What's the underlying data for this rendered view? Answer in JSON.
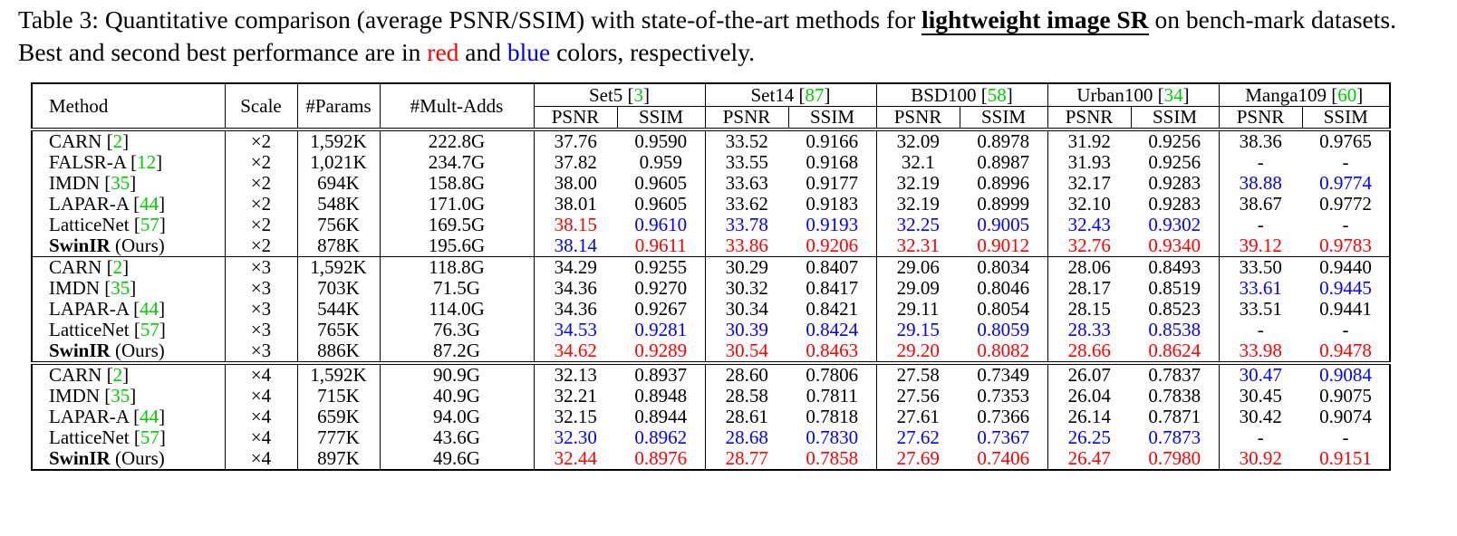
{
  "caption": {
    "prefix": "Table 3: Quantitative comparison (average PSNR/SSIM) with state-of-the-art methods for ",
    "bold": "lightweight image SR",
    "middle": " on bench-mark datasets. Best and second best performance are in ",
    "red_word": "red",
    "and_word": " and ",
    "blue_word": "blue",
    "suffix": " colors, respectively."
  },
  "colors": {
    "best": "#ff0000",
    "second": "#0000ff",
    "citation": "#00cc00"
  },
  "header": {
    "method": "Method",
    "scale": "Scale",
    "params": "#Params",
    "mult_adds": "#Mult-Adds",
    "datasets": [
      {
        "name": "Set5",
        "cite": "3"
      },
      {
        "name": "Set14",
        "cite": "87"
      },
      {
        "name": "BSD100",
        "cite": "58"
      },
      {
        "name": "Urban100",
        "cite": "34"
      },
      {
        "name": "Manga109",
        "cite": "60"
      }
    ],
    "psnr": "PSNR",
    "ssim": "SSIM"
  },
  "groups": [
    {
      "rows": [
        {
          "name": "CARN",
          "cite": "2",
          "suffix": "",
          "bold": false,
          "scale": "×2",
          "params": "1,592K",
          "mult": "222.8G",
          "cells": [
            [
              "37.76",
              ""
            ],
            [
              "0.9590",
              ""
            ],
            [
              "33.52",
              ""
            ],
            [
              "0.9166",
              ""
            ],
            [
              "32.09",
              ""
            ],
            [
              "0.8978",
              ""
            ],
            [
              "31.92",
              ""
            ],
            [
              "0.9256",
              ""
            ],
            [
              "38.36",
              ""
            ],
            [
              "0.9765",
              ""
            ]
          ]
        },
        {
          "name": "FALSR-A",
          "cite": "12",
          "suffix": "",
          "bold": false,
          "scale": "×2",
          "params": "1,021K",
          "mult": "234.7G",
          "cells": [
            [
              "37.82",
              ""
            ],
            [
              "0.959",
              ""
            ],
            [
              "33.55",
              ""
            ],
            [
              "0.9168",
              ""
            ],
            [
              "32.1",
              ""
            ],
            [
              "0.8987",
              ""
            ],
            [
              "31.93",
              ""
            ],
            [
              "0.9256",
              ""
            ],
            [
              "-",
              ""
            ],
            [
              "-",
              ""
            ]
          ]
        },
        {
          "name": "IMDN",
          "cite": "35",
          "suffix": "",
          "bold": false,
          "scale": "×2",
          "params": "694K",
          "mult": "158.8G",
          "cells": [
            [
              "38.00",
              ""
            ],
            [
              "0.9605",
              ""
            ],
            [
              "33.63",
              ""
            ],
            [
              "0.9177",
              ""
            ],
            [
              "32.19",
              ""
            ],
            [
              "0.8996",
              ""
            ],
            [
              "32.17",
              ""
            ],
            [
              "0.9283",
              ""
            ],
            [
              "38.88",
              "b"
            ],
            [
              "0.9774",
              "b"
            ]
          ]
        },
        {
          "name": "LAPAR-A",
          "cite": "44",
          "suffix": "",
          "bold": false,
          "scale": "×2",
          "params": "548K",
          "mult": "171.0G",
          "cells": [
            [
              "38.01",
              ""
            ],
            [
              "0.9605",
              ""
            ],
            [
              "33.62",
              ""
            ],
            [
              "0.9183",
              ""
            ],
            [
              "32.19",
              ""
            ],
            [
              "0.8999",
              ""
            ],
            [
              "32.10",
              ""
            ],
            [
              "0.9283",
              ""
            ],
            [
              "38.67",
              ""
            ],
            [
              "0.9772",
              ""
            ]
          ]
        },
        {
          "name": "LatticeNet",
          "cite": "57",
          "suffix": "",
          "bold": false,
          "scale": "×2",
          "params": "756K",
          "mult": "169.5G",
          "cells": [
            [
              "38.15",
              "r"
            ],
            [
              "0.9610",
              "b"
            ],
            [
              "33.78",
              "b"
            ],
            [
              "0.9193",
              "b"
            ],
            [
              "32.25",
              "b"
            ],
            [
              "0.9005",
              "b"
            ],
            [
              "32.43",
              "b"
            ],
            [
              "0.9302",
              "b"
            ],
            [
              "-",
              ""
            ],
            [
              "-",
              ""
            ]
          ]
        },
        {
          "name": "SwinIR",
          "cite": "",
          "suffix": " (Ours)",
          "bold": true,
          "scale": "×2",
          "params": "878K",
          "mult": "195.6G",
          "cells": [
            [
              "38.14",
              "b"
            ],
            [
              "0.9611",
              "r"
            ],
            [
              "33.86",
              "r"
            ],
            [
              "0.9206",
              "r"
            ],
            [
              "32.31",
              "r"
            ],
            [
              "0.9012",
              "r"
            ],
            [
              "32.76",
              "r"
            ],
            [
              "0.9340",
              "r"
            ],
            [
              "39.12",
              "r"
            ],
            [
              "0.9783",
              "r"
            ]
          ]
        }
      ]
    },
    {
      "rows": [
        {
          "name": "CARN",
          "cite": "2",
          "suffix": "",
          "bold": false,
          "scale": "×3",
          "params": "1,592K",
          "mult": "118.8G",
          "cells": [
            [
              "34.29",
              ""
            ],
            [
              "0.9255",
              ""
            ],
            [
              "30.29",
              ""
            ],
            [
              "0.8407",
              ""
            ],
            [
              "29.06",
              ""
            ],
            [
              "0.8034",
              ""
            ],
            [
              "28.06",
              ""
            ],
            [
              "0.8493",
              ""
            ],
            [
              "33.50",
              ""
            ],
            [
              "0.9440",
              ""
            ]
          ]
        },
        {
          "name": "IMDN",
          "cite": "35",
          "suffix": "",
          "bold": false,
          "scale": "×3",
          "params": "703K",
          "mult": "71.5G",
          "cells": [
            [
              "34.36",
              ""
            ],
            [
              "0.9270",
              ""
            ],
            [
              "30.32",
              ""
            ],
            [
              "0.8417",
              ""
            ],
            [
              "29.09",
              ""
            ],
            [
              "0.8046",
              ""
            ],
            [
              "28.17",
              ""
            ],
            [
              "0.8519",
              ""
            ],
            [
              "33.61",
              "b"
            ],
            [
              "0.9445",
              "b"
            ]
          ]
        },
        {
          "name": "LAPAR-A",
          "cite": "44",
          "suffix": "",
          "bold": false,
          "scale": "×3",
          "params": "544K",
          "mult": "114.0G",
          "cells": [
            [
              "34.36",
              ""
            ],
            [
              "0.9267",
              ""
            ],
            [
              "30.34",
              ""
            ],
            [
              "0.8421",
              ""
            ],
            [
              "29.11",
              ""
            ],
            [
              "0.8054",
              ""
            ],
            [
              "28.15",
              ""
            ],
            [
              "0.8523",
              ""
            ],
            [
              "33.51",
              ""
            ],
            [
              "0.9441",
              ""
            ]
          ]
        },
        {
          "name": "LatticeNet",
          "cite": "57",
          "suffix": "",
          "bold": false,
          "scale": "×3",
          "params": "765K",
          "mult": "76.3G",
          "cells": [
            [
              "34.53",
              "b"
            ],
            [
              "0.9281",
              "b"
            ],
            [
              "30.39",
              "b"
            ],
            [
              "0.8424",
              "b"
            ],
            [
              "29.15",
              "b"
            ],
            [
              "0.8059",
              "b"
            ],
            [
              "28.33",
              "b"
            ],
            [
              "0.8538",
              "b"
            ],
            [
              "-",
              ""
            ],
            [
              "-",
              ""
            ]
          ]
        },
        {
          "name": "SwinIR",
          "cite": "",
          "suffix": " (Ours)",
          "bold": true,
          "scale": "×3",
          "params": "886K",
          "mult": "87.2G",
          "cells": [
            [
              "34.62",
              "r"
            ],
            [
              "0.9289",
              "r"
            ],
            [
              "30.54",
              "r"
            ],
            [
              "0.8463",
              "r"
            ],
            [
              "29.20",
              "r"
            ],
            [
              "0.8082",
              "r"
            ],
            [
              "28.66",
              "r"
            ],
            [
              "0.8624",
              "r"
            ],
            [
              "33.98",
              "r"
            ],
            [
              "0.9478",
              "r"
            ]
          ]
        }
      ]
    },
    {
      "rows": [
        {
          "name": "CARN",
          "cite": "2",
          "suffix": "",
          "bold": false,
          "scale": "×4",
          "params": "1,592K",
          "mult": "90.9G",
          "cells": [
            [
              "32.13",
              ""
            ],
            [
              "0.8937",
              ""
            ],
            [
              "28.60",
              ""
            ],
            [
              "0.7806",
              ""
            ],
            [
              "27.58",
              ""
            ],
            [
              "0.7349",
              ""
            ],
            [
              "26.07",
              ""
            ],
            [
              "0.7837",
              ""
            ],
            [
              "30.47",
              "b"
            ],
            [
              "0.9084",
              "b"
            ]
          ]
        },
        {
          "name": "IMDN",
          "cite": "35",
          "suffix": "",
          "bold": false,
          "scale": "×4",
          "params": "715K",
          "mult": "40.9G",
          "cells": [
            [
              "32.21",
              ""
            ],
            [
              "0.8948",
              ""
            ],
            [
              "28.58",
              ""
            ],
            [
              "0.7811",
              ""
            ],
            [
              "27.56",
              ""
            ],
            [
              "0.7353",
              ""
            ],
            [
              "26.04",
              ""
            ],
            [
              "0.7838",
              ""
            ],
            [
              "30.45",
              ""
            ],
            [
              "0.9075",
              ""
            ]
          ]
        },
        {
          "name": "LAPAR-A",
          "cite": "44",
          "suffix": "",
          "bold": false,
          "scale": "×4",
          "params": "659K",
          "mult": "94.0G",
          "cells": [
            [
              "32.15",
              ""
            ],
            [
              "0.8944",
              ""
            ],
            [
              "28.61",
              ""
            ],
            [
              "0.7818",
              ""
            ],
            [
              "27.61",
              ""
            ],
            [
              "0.7366",
              ""
            ],
            [
              "26.14",
              ""
            ],
            [
              "0.7871",
              ""
            ],
            [
              "30.42",
              ""
            ],
            [
              "0.9074",
              ""
            ]
          ]
        },
        {
          "name": "LatticeNet",
          "cite": "57",
          "suffix": "",
          "bold": false,
          "scale": "×4",
          "params": "777K",
          "mult": "43.6G",
          "cells": [
            [
              "32.30",
              "b"
            ],
            [
              "0.8962",
              "b"
            ],
            [
              "28.68",
              "b"
            ],
            [
              "0.7830",
              "b"
            ],
            [
              "27.62",
              "b"
            ],
            [
              "0.7367",
              "b"
            ],
            [
              "26.25",
              "b"
            ],
            [
              "0.7873",
              "b"
            ],
            [
              "-",
              ""
            ],
            [
              "-",
              ""
            ]
          ]
        },
        {
          "name": "SwinIR",
          "cite": "",
          "suffix": " (Ours)",
          "bold": true,
          "scale": "×4",
          "params": "897K",
          "mult": "49.6G",
          "cells": [
            [
              "32.44",
              "r"
            ],
            [
              "0.8976",
              "r"
            ],
            [
              "28.77",
              "r"
            ],
            [
              "0.7858",
              "r"
            ],
            [
              "27.69",
              "r"
            ],
            [
              "0.7406",
              "r"
            ],
            [
              "26.47",
              "r"
            ],
            [
              "0.7980",
              "r"
            ],
            [
              "30.92",
              "r"
            ],
            [
              "0.9151",
              "r"
            ]
          ]
        }
      ]
    }
  ]
}
